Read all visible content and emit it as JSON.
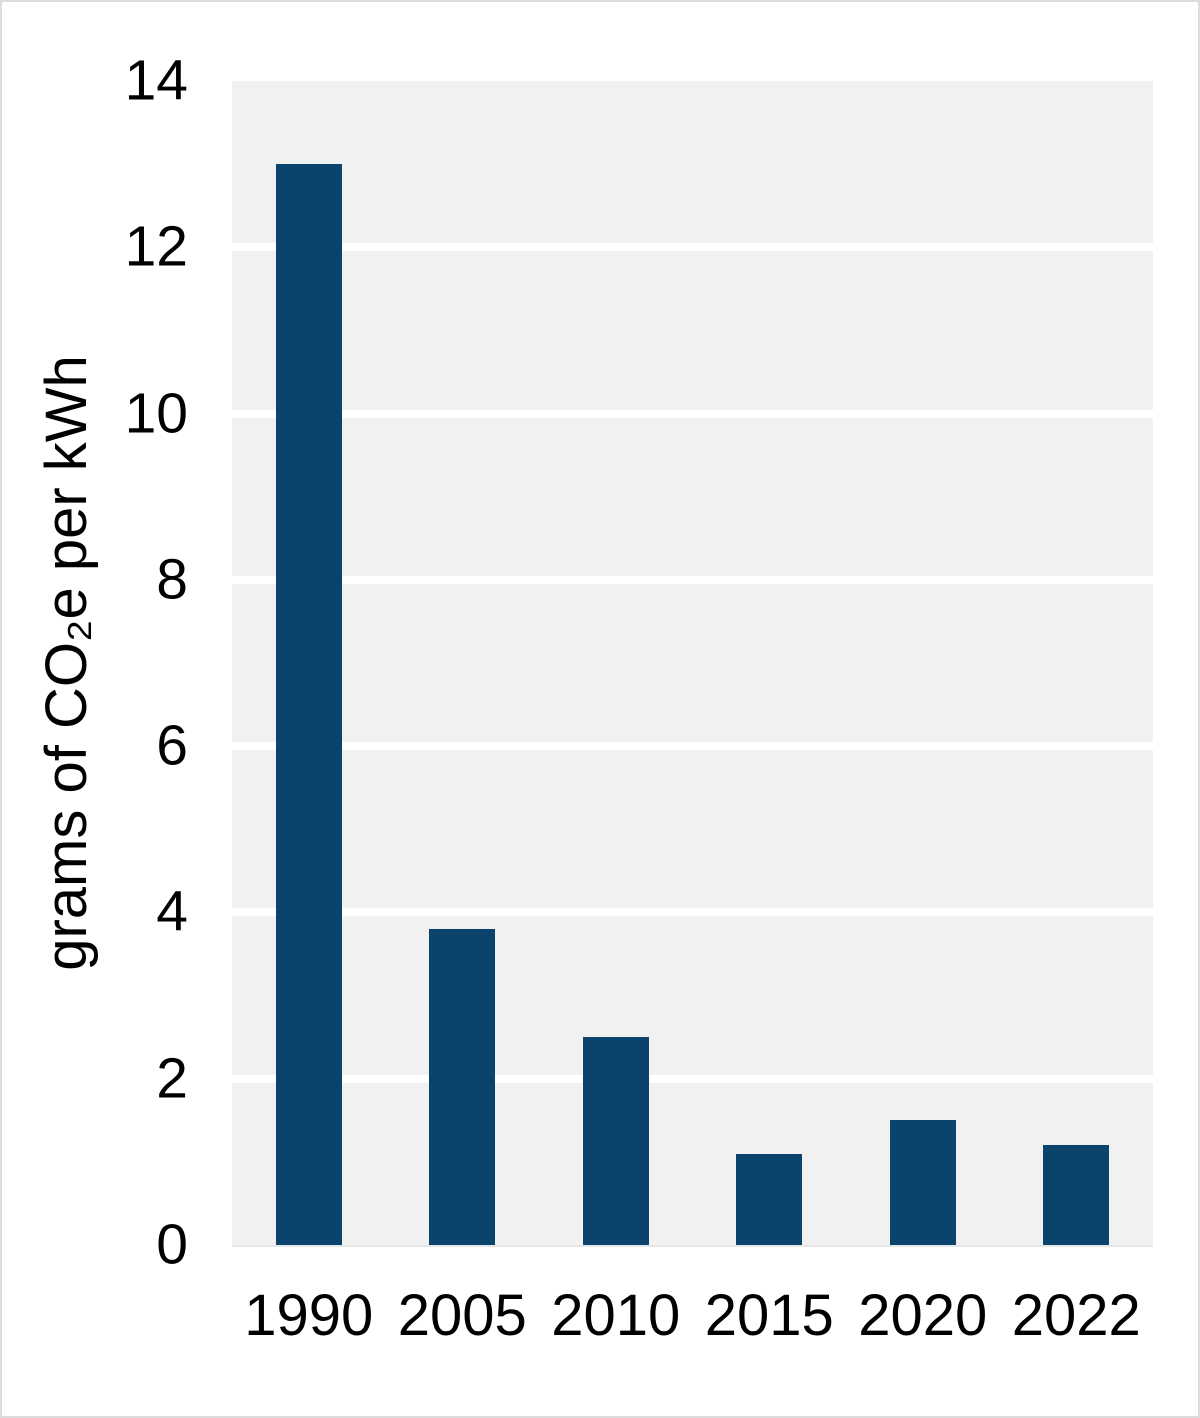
{
  "chart_data": {
    "type": "bar",
    "categories": [
      "1990",
      "2005",
      "2010",
      "2015",
      "2020",
      "2022"
    ],
    "values": [
      13.0,
      3.8,
      2.5,
      1.1,
      1.5,
      1.2
    ],
    "title": "",
    "xlabel": "",
    "ylabel": "grams of CO₂e per kWh",
    "ylim": [
      0,
      14
    ],
    "ytick_interval": 2,
    "yticks": [
      0,
      2,
      4,
      6,
      8,
      10,
      12,
      14
    ],
    "grid": true,
    "legend": false,
    "colors": {
      "bar": "#0a436b",
      "plot_background": "#f1f1f1",
      "gridline": "#ffffff",
      "text": "#000000",
      "page_background": "#ffffff",
      "page_border": "#dcdcdc"
    }
  }
}
